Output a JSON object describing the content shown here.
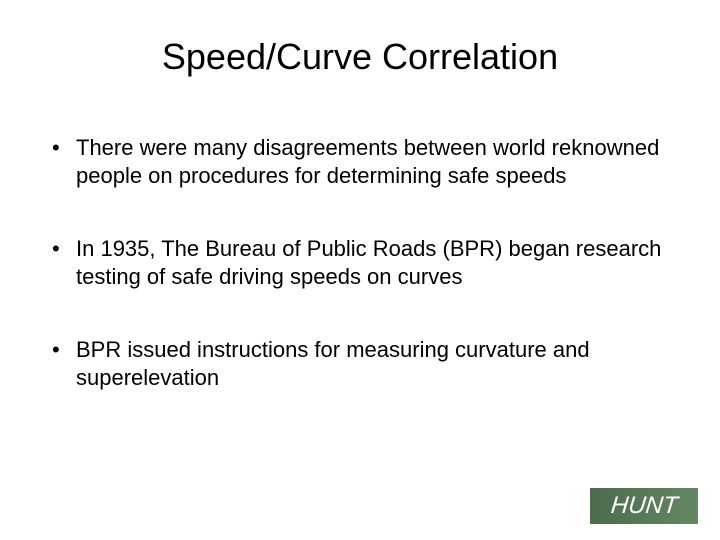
{
  "slide": {
    "title": "Speed/Curve Correlation",
    "title_fontsize": 36,
    "title_color": "#000000",
    "bullets": [
      "There were many disagreements between world reknowned people on procedures for determining safe speeds",
      "In 1935, The Bureau of Public Roads (BPR) began research testing of safe driving speeds on curves",
      "BPR issued instructions for measuring curvature and superelevation"
    ],
    "bullet_fontsize": 22,
    "bullet_color": "#000000",
    "background_color": "#ffffff"
  },
  "logo": {
    "text": "HUNT",
    "background_color": "#5a7a5a",
    "text_color": "#ffffff",
    "fontsize": 24
  }
}
